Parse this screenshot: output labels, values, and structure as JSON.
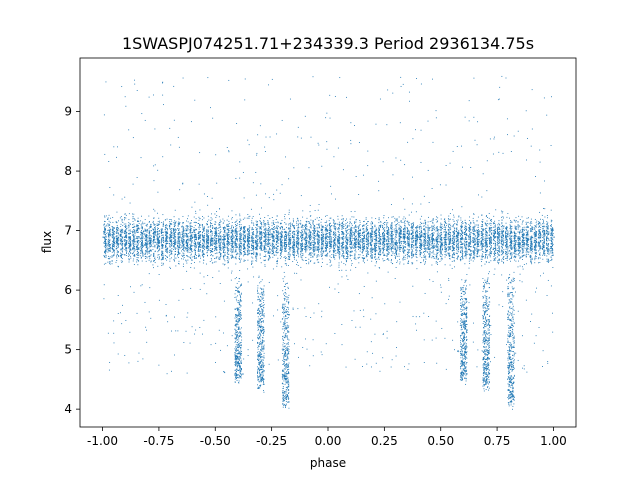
{
  "chart_data": {
    "type": "scatter",
    "title": "1SWASPJ074251.71+234339.3 Period 2936134.75s",
    "xlabel": "phase",
    "ylabel": "flux",
    "xlim": [
      -1.1,
      1.1
    ],
    "ylim": [
      3.7,
      9.9
    ],
    "x_ticks": [
      "-1.00",
      "-0.75",
      "-0.50",
      "-0.25",
      "0.00",
      "0.25",
      "0.50",
      "0.75",
      "1.00"
    ],
    "x_tick_values": [
      -1.0,
      -0.75,
      -0.5,
      -0.25,
      0.0,
      0.25,
      0.5,
      0.75,
      1.0
    ],
    "y_ticks": [
      "4",
      "5",
      "6",
      "7",
      "8",
      "9"
    ],
    "y_tick_values": [
      4,
      5,
      6,
      7,
      8,
      9
    ],
    "marker_color": "#1f77b4",
    "grid": false,
    "series": [
      {
        "x_range": [
          -1.0,
          1.0
        ],
        "baseline_flux": 6.85,
        "scatter_spread": 0.35,
        "sampled_points": [
          {
            "x": -1.0,
            "y": 6.9
          },
          {
            "x": -0.98,
            "y": 7.2
          },
          {
            "x": -0.96,
            "y": 6.5
          },
          {
            "x": -0.9,
            "y": 6.8
          },
          {
            "x": -0.82,
            "y": 7.0
          },
          {
            "x": -0.75,
            "y": 6.7
          },
          {
            "x": -0.66,
            "y": 6.9
          },
          {
            "x": -0.58,
            "y": 6.8
          },
          {
            "x": -0.5,
            "y": 6.7
          },
          {
            "x": -0.42,
            "y": 6.9
          },
          {
            "x": -0.38,
            "y": 4.6
          },
          {
            "x": -0.3,
            "y": 4.5
          },
          {
            "x": -0.19,
            "y": 4.2
          },
          {
            "x": -0.1,
            "y": 6.8
          },
          {
            "x": 0.0,
            "y": 6.9
          },
          {
            "x": 0.1,
            "y": 6.8
          },
          {
            "x": 0.2,
            "y": 6.7
          },
          {
            "x": 0.3,
            "y": 6.8
          },
          {
            "x": 0.4,
            "y": 6.9
          },
          {
            "x": 0.5,
            "y": 6.8
          },
          {
            "x": 0.6,
            "y": 4.6
          },
          {
            "x": 0.7,
            "y": 4.5
          },
          {
            "x": 0.81,
            "y": 4.3
          },
          {
            "x": 0.9,
            "y": 6.8
          },
          {
            "x": 1.0,
            "y": 6.9
          }
        ],
        "dips": [
          {
            "phase": -0.4,
            "min_flux": 4.5
          },
          {
            "phase": -0.3,
            "min_flux": 4.4
          },
          {
            "phase": -0.19,
            "min_flux": 4.1
          },
          {
            "phase": 0.6,
            "min_flux": 4.5
          },
          {
            "phase": 0.7,
            "min_flux": 4.4
          },
          {
            "phase": 0.81,
            "min_flux": 4.1
          }
        ]
      }
    ]
  }
}
